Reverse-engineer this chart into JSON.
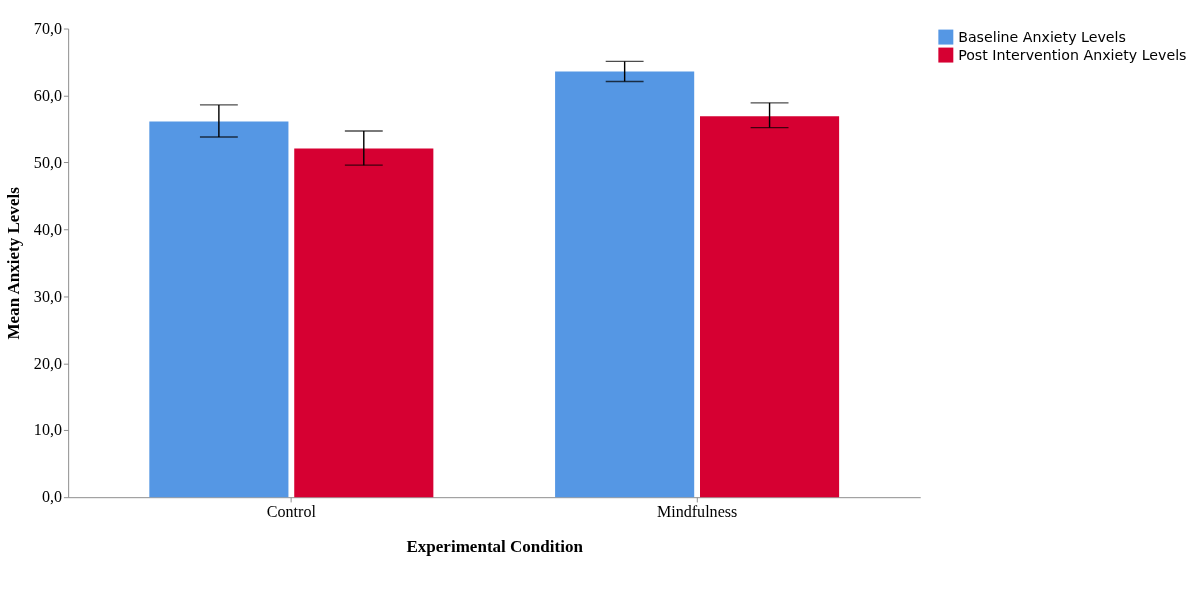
{
  "chart_data": {
    "type": "bar",
    "xlabel": "Experimental Condition",
    "ylabel": "Mean Anxiety Levels",
    "categories": [
      "Control",
      "Mindfulness"
    ],
    "series": [
      {
        "name": "Baseline Anxiety Levels",
        "color": "#5597e4",
        "values": [
          56.1,
          63.6
        ],
        "errors": [
          [
            53.8,
            58.6
          ],
          [
            62.1,
            65.1
          ]
        ]
      },
      {
        "name": "Post Intervention Anxiety Levels",
        "color": "#d60032",
        "values": [
          52.1,
          56.9
        ],
        "errors": [
          [
            49.6,
            54.7
          ],
          [
            55.2,
            58.9
          ]
        ]
      }
    ],
    "ylim": [
      0,
      70
    ],
    "yticks": [
      {
        "value": 0,
        "label": "0,0"
      },
      {
        "value": 10,
        "label": "10,0"
      },
      {
        "value": 20,
        "label": "20,0"
      },
      {
        "value": 30,
        "label": "30,0"
      },
      {
        "value": 40,
        "label": "40,0"
      },
      {
        "value": 50,
        "label": "50,0"
      },
      {
        "value": 60,
        "label": "60,0"
      },
      {
        "value": 70,
        "label": "70,0"
      }
    ],
    "grid": false,
    "legend": "top right"
  }
}
